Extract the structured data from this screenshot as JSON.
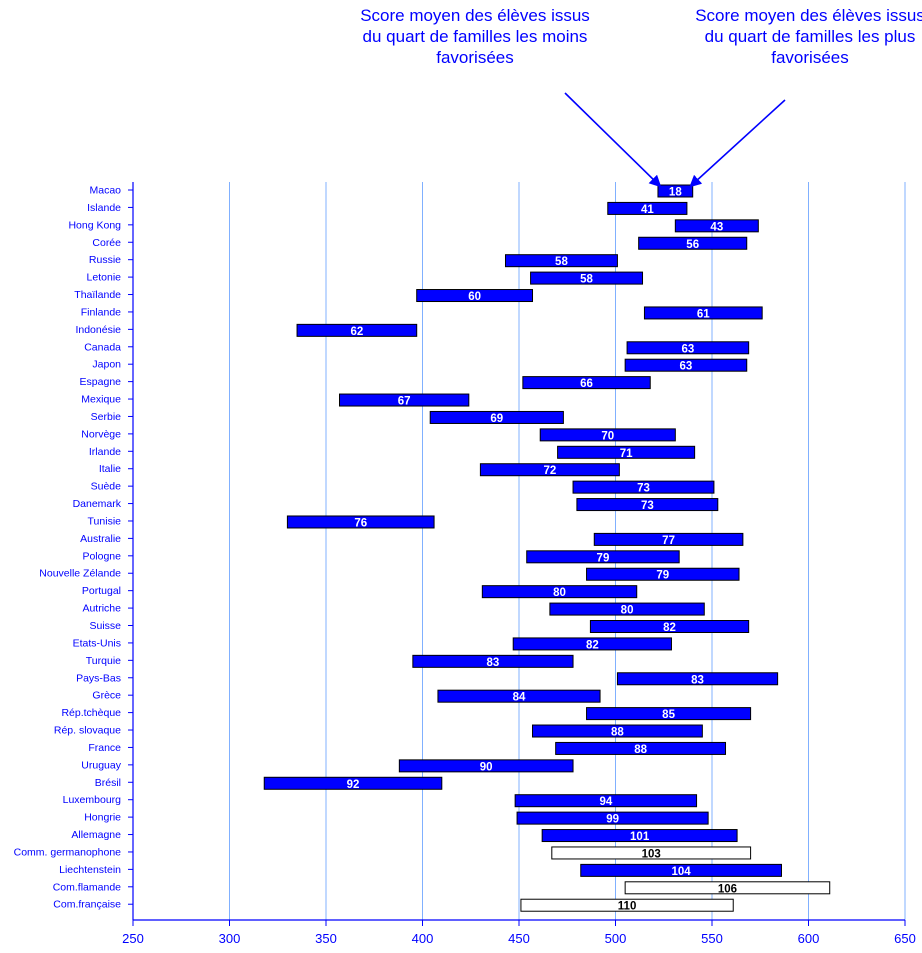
{
  "annotations": {
    "low": "Score moyen des élèves issus du quart de familles les moins favorisées",
    "high": "Score moyen des élèves issus du quart de familles les plus favorisées"
  },
  "colors": {
    "bar_fill": "#0000ff",
    "bar_fill_comm": "#ffffff",
    "axis": "#0000ff",
    "grid": "#80b0ff",
    "label_on_fill": "#ffffff",
    "label_on_white": "#000000"
  },
  "chart_data": {
    "type": "bar",
    "orientation": "horizontal-range",
    "title": "",
    "xlabel": "",
    "ylabel": "",
    "xlim": [
      250,
      650
    ],
    "xticks": [
      250,
      300,
      350,
      400,
      450,
      500,
      550,
      600,
      650
    ],
    "grid": true,
    "categories": [
      "Macao",
      "Islande",
      "Hong Kong",
      "Corée",
      "Russie",
      "Letonie",
      "Thaïlande",
      "Finlande",
      "Indonésie",
      "Canada",
      "Japon",
      "Espagne",
      "Mexique",
      "Serbie",
      "Norvège",
      "Irlande",
      "Italie",
      "Suède",
      "Danemark",
      "Tunisie",
      "Australie",
      "Pologne",
      "Nouvelle Zélande",
      "Portugal",
      "Autriche",
      "Suisse",
      "Etats-Unis",
      "Turquie",
      "Pays-Bas",
      "Grèce",
      "Rép.tchèque",
      "Rép. slovaque",
      "France",
      "Uruguay",
      "Brésil",
      "Luxembourg",
      "Hongrie",
      "Allemagne",
      "Comm. germanophone",
      "Liechtenstein",
      "Com.flamande",
      "Com.française"
    ],
    "series": [
      {
        "values": [
          [
            522,
            540
          ],
          [
            496,
            537
          ],
          [
            531,
            574
          ],
          [
            512,
            568
          ],
          [
            443,
            501
          ],
          [
            456,
            514
          ],
          [
            397,
            457
          ],
          [
            515,
            576
          ],
          [
            335,
            397
          ],
          [
            506,
            569
          ],
          [
            505,
            568
          ],
          [
            452,
            518
          ],
          [
            357,
            424
          ],
          [
            404,
            473
          ],
          [
            461,
            531
          ],
          [
            470,
            541
          ],
          [
            430,
            502
          ],
          [
            478,
            551
          ],
          [
            480,
            553
          ],
          [
            330,
            406
          ],
          [
            489,
            566
          ],
          [
            454,
            533
          ],
          [
            485,
            564
          ],
          [
            431,
            511
          ],
          [
            466,
            546
          ],
          [
            487,
            569
          ],
          [
            447,
            529
          ],
          [
            395,
            478
          ],
          [
            501,
            584
          ],
          [
            408,
            492
          ],
          [
            485,
            570
          ],
          [
            457,
            545
          ],
          [
            469,
            557
          ],
          [
            388,
            478
          ],
          [
            318,
            410
          ],
          [
            448,
            542
          ],
          [
            449,
            548
          ],
          [
            462,
            563
          ],
          [
            467,
            570
          ],
          [
            482,
            586
          ],
          [
            505,
            611
          ],
          [
            451,
            561
          ]
        ]
      }
    ],
    "differences": [
      18,
      41,
      43,
      56,
      58,
      58,
      60,
      61,
      62,
      63,
      63,
      66,
      67,
      69,
      70,
      71,
      72,
      73,
      73,
      76,
      77,
      79,
      79,
      80,
      80,
      82,
      82,
      83,
      83,
      84,
      85,
      88,
      88,
      90,
      92,
      94,
      99,
      101,
      103,
      104,
      106,
      110
    ],
    "outlined_categories": [
      "Comm. germanophone",
      "Com.flamande",
      "Com.française"
    ]
  }
}
